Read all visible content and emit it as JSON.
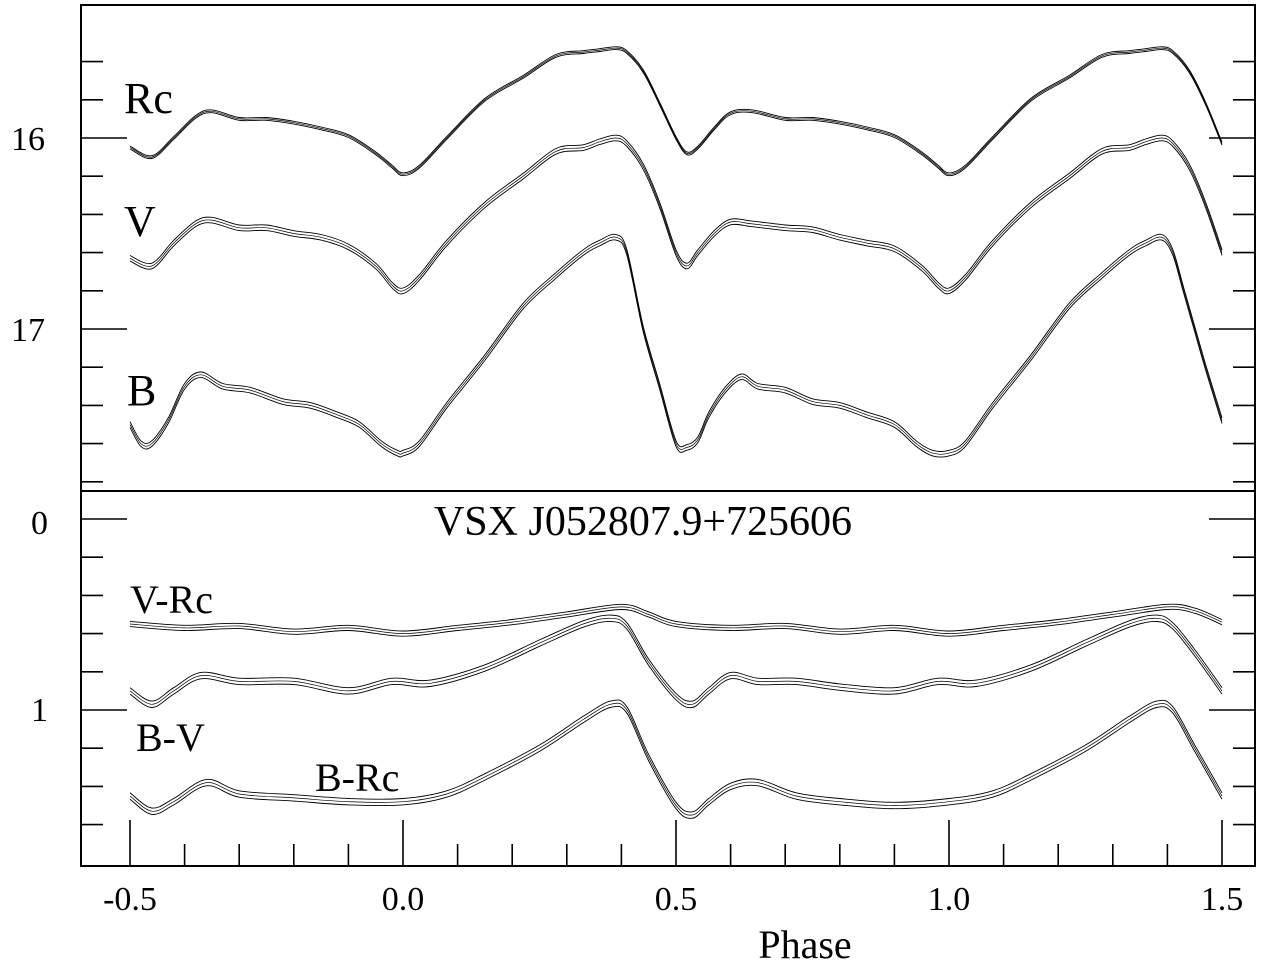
{
  "chart_data": [
    {
      "type": "line",
      "title": "",
      "xlabel": "Phase",
      "ylabel": "",
      "xlim": [
        -0.6,
        1.56
      ],
      "ylim": [
        17.8,
        15.5
      ],
      "y_inverted": true,
      "x_ticks": [
        -0.5,
        0.0,
        0.5,
        1.0,
        1.5
      ],
      "x_tick_labels": [
        "-0.5",
        "0.0",
        "0.5",
        "1.0",
        "1.5"
      ],
      "y_tick_labels": [
        "16",
        "17"
      ],
      "y_tick_values": [
        16,
        17
      ],
      "series": [
        {
          "name": "Rc",
          "x": [
            -0.5,
            -0.46,
            -0.42,
            -0.38,
            -0.35,
            -0.3,
            -0.25,
            -0.2,
            -0.15,
            -0.1,
            -0.05,
            -0.02,
            0.0,
            0.03,
            0.08,
            0.15,
            0.22,
            0.28,
            0.33,
            0.36,
            0.39,
            0.41,
            0.44,
            0.47,
            0.5,
            0.52,
            0.54,
            0.57,
            0.6,
            0.64,
            0.7,
            0.75,
            0.8,
            0.85,
            0.9,
            0.95,
            0.98,
            1.0,
            1.03,
            1.08,
            1.15,
            1.22,
            1.28,
            1.33,
            1.36,
            1.39,
            1.41,
            1.44,
            1.47,
            1.5
          ],
          "y": [
            16.05,
            16.1,
            16.0,
            15.89,
            15.86,
            15.9,
            15.9,
            15.92,
            15.95,
            15.99,
            16.08,
            16.15,
            16.19,
            16.15,
            16.0,
            15.8,
            15.68,
            15.57,
            15.55,
            15.54,
            15.53,
            15.55,
            15.65,
            15.82,
            16.0,
            16.08,
            16.05,
            15.95,
            15.87,
            15.86,
            15.9,
            15.9,
            15.92,
            15.95,
            15.99,
            16.08,
            16.15,
            16.19,
            16.15,
            16.0,
            15.8,
            15.68,
            15.57,
            15.55,
            15.54,
            15.53,
            15.55,
            15.65,
            15.82,
            16.03
          ]
        },
        {
          "name": "V",
          "x": [
            -0.5,
            -0.46,
            -0.42,
            -0.38,
            -0.35,
            -0.3,
            -0.25,
            -0.2,
            -0.15,
            -0.1,
            -0.05,
            -0.02,
            0.0,
            0.03,
            0.08,
            0.15,
            0.22,
            0.28,
            0.33,
            0.36,
            0.39,
            0.41,
            0.44,
            0.47,
            0.5,
            0.52,
            0.54,
            0.57,
            0.6,
            0.64,
            0.7,
            0.75,
            0.8,
            0.85,
            0.9,
            0.95,
            0.98,
            1.0,
            1.03,
            1.08,
            1.15,
            1.22,
            1.28,
            1.33,
            1.36,
            1.39,
            1.41,
            1.44,
            1.47,
            1.5
          ],
          "y": [
            16.63,
            16.67,
            16.55,
            16.45,
            16.43,
            16.47,
            16.47,
            16.5,
            16.52,
            16.57,
            16.67,
            16.77,
            16.8,
            16.73,
            16.55,
            16.35,
            16.2,
            16.07,
            16.05,
            16.02,
            16.0,
            16.03,
            16.15,
            16.35,
            16.6,
            16.67,
            16.6,
            16.5,
            16.44,
            16.45,
            16.47,
            16.48,
            16.52,
            16.55,
            16.58,
            16.68,
            16.77,
            16.8,
            16.73,
            16.55,
            16.35,
            16.2,
            16.07,
            16.05,
            16.02,
            16.0,
            16.03,
            16.15,
            16.35,
            16.6
          ]
        },
        {
          "name": "B",
          "x": [
            -0.5,
            -0.48,
            -0.46,
            -0.43,
            -0.4,
            -0.37,
            -0.33,
            -0.28,
            -0.22,
            -0.17,
            -0.12,
            -0.08,
            -0.04,
            -0.01,
            0.0,
            0.03,
            0.08,
            0.15,
            0.22,
            0.28,
            0.33,
            0.36,
            0.39,
            0.41,
            0.44,
            0.47,
            0.5,
            0.52,
            0.54,
            0.56,
            0.59,
            0.62,
            0.65,
            0.7,
            0.75,
            0.8,
            0.85,
            0.9,
            0.94,
            0.97,
            1.0,
            1.03,
            1.08,
            1.15,
            1.22,
            1.28,
            1.33,
            1.36,
            1.39,
            1.41,
            1.43,
            1.45,
            1.47,
            1.5
          ],
          "y": [
            17.5,
            17.6,
            17.6,
            17.48,
            17.3,
            17.24,
            17.3,
            17.32,
            17.38,
            17.4,
            17.45,
            17.5,
            17.6,
            17.65,
            17.65,
            17.6,
            17.4,
            17.15,
            16.88,
            16.72,
            16.6,
            16.55,
            16.52,
            16.6,
            17.0,
            17.3,
            17.6,
            17.62,
            17.58,
            17.45,
            17.32,
            17.25,
            17.3,
            17.32,
            17.38,
            17.4,
            17.45,
            17.5,
            17.6,
            17.65,
            17.65,
            17.6,
            17.4,
            17.15,
            16.88,
            16.72,
            16.6,
            16.55,
            16.52,
            16.6,
            16.8,
            17.0,
            17.2,
            17.48
          ]
        }
      ]
    },
    {
      "type": "line",
      "title": "VSX J052807.9+725606",
      "xlabel": "Phase",
      "ylabel": "",
      "xlim": [
        -0.6,
        1.56
      ],
      "ylim": [
        1.8,
        -0.02
      ],
      "y_inverted": true,
      "y_tick_labels": [
        "0",
        "1"
      ],
      "y_tick_values": [
        0,
        1
      ],
      "series": [
        {
          "name": "V-Rc",
          "x": [
            -0.5,
            -0.4,
            -0.3,
            -0.2,
            -0.1,
            0.0,
            0.1,
            0.2,
            0.3,
            0.4,
            0.45,
            0.5,
            0.6,
            0.7,
            0.8,
            0.9,
            1.0,
            1.1,
            1.2,
            1.3,
            1.4,
            1.45,
            1.5
          ],
          "y": [
            0.55,
            0.57,
            0.56,
            0.59,
            0.57,
            0.6,
            0.57,
            0.54,
            0.5,
            0.46,
            0.5,
            0.55,
            0.57,
            0.56,
            0.59,
            0.57,
            0.6,
            0.57,
            0.54,
            0.5,
            0.46,
            0.48,
            0.54
          ]
        },
        {
          "name": "B-V",
          "x": [
            -0.5,
            -0.46,
            -0.42,
            -0.37,
            -0.3,
            -0.2,
            -0.1,
            -0.02,
            0.05,
            0.15,
            0.25,
            0.33,
            0.38,
            0.41,
            0.45,
            0.5,
            0.53,
            0.56,
            0.6,
            0.65,
            0.72,
            0.8,
            0.9,
            0.98,
            1.05,
            1.15,
            1.25,
            1.33,
            1.38,
            1.41,
            1.45,
            1.5
          ],
          "y": [
            0.9,
            0.97,
            0.9,
            0.82,
            0.85,
            0.85,
            0.9,
            0.85,
            0.86,
            0.78,
            0.65,
            0.55,
            0.52,
            0.56,
            0.75,
            0.93,
            0.97,
            0.9,
            0.82,
            0.85,
            0.85,
            0.88,
            0.9,
            0.85,
            0.86,
            0.78,
            0.65,
            0.55,
            0.52,
            0.56,
            0.7,
            0.9
          ]
        },
        {
          "name": "B-Rc",
          "x": [
            -0.5,
            -0.46,
            -0.42,
            -0.36,
            -0.3,
            -0.2,
            -0.1,
            0.0,
            0.08,
            0.15,
            0.25,
            0.33,
            0.38,
            0.41,
            0.45,
            0.5,
            0.53,
            0.56,
            0.6,
            0.65,
            0.72,
            0.8,
            0.9,
            1.0,
            1.08,
            1.15,
            1.25,
            1.33,
            1.38,
            1.41,
            1.45,
            1.5
          ],
          "y": [
            1.45,
            1.53,
            1.48,
            1.38,
            1.44,
            1.46,
            1.48,
            1.48,
            1.44,
            1.35,
            1.2,
            1.05,
            0.97,
            1.0,
            1.25,
            1.5,
            1.55,
            1.48,
            1.4,
            1.38,
            1.45,
            1.48,
            1.5,
            1.48,
            1.44,
            1.35,
            1.2,
            1.05,
            0.97,
            1.0,
            1.2,
            1.45
          ]
        }
      ]
    }
  ],
  "labels": {
    "title": "VSX J052807.9+725606",
    "xlabel": "Phase",
    "top": {
      "Rc": "Rc",
      "V": "V",
      "B": "B"
    },
    "bottom": {
      "VRc": "V-Rc",
      "BV": "B-V",
      "BRc": "B-Rc"
    }
  }
}
